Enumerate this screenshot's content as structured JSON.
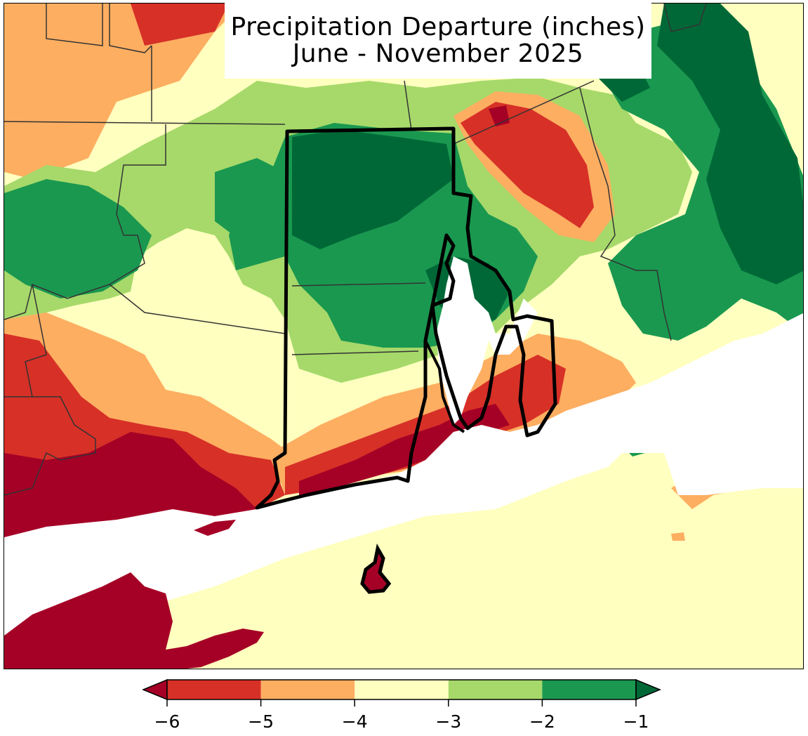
{
  "title": {
    "line1": "Precipitation Departure (inches)",
    "line2": "June - November 2025"
  },
  "colorbar": {
    "ticks": [
      "−6",
      "−5",
      "−4",
      "−3",
      "−2",
      "−1"
    ],
    "bins": [
      {
        "range": "< -6",
        "color": "#a50026"
      },
      {
        "range": "-6 to -5",
        "color": "#d73027"
      },
      {
        "range": "-5 to -4",
        "color": "#fdae61"
      },
      {
        "range": "-4 to -3",
        "color": "#ffffbf"
      },
      {
        "range": "-3 to -2",
        "color": "#a6d96a"
      },
      {
        "range": "-2 to -1",
        "color": "#1a9850"
      },
      {
        "range": "> -1",
        "color": "#006837"
      }
    ],
    "extend": "both"
  },
  "map": {
    "region": "Rhode Island and surrounding southern New England",
    "colors": {
      "water": "#ffffff",
      "state_border": "#000000",
      "county_border": "#333333"
    }
  }
}
